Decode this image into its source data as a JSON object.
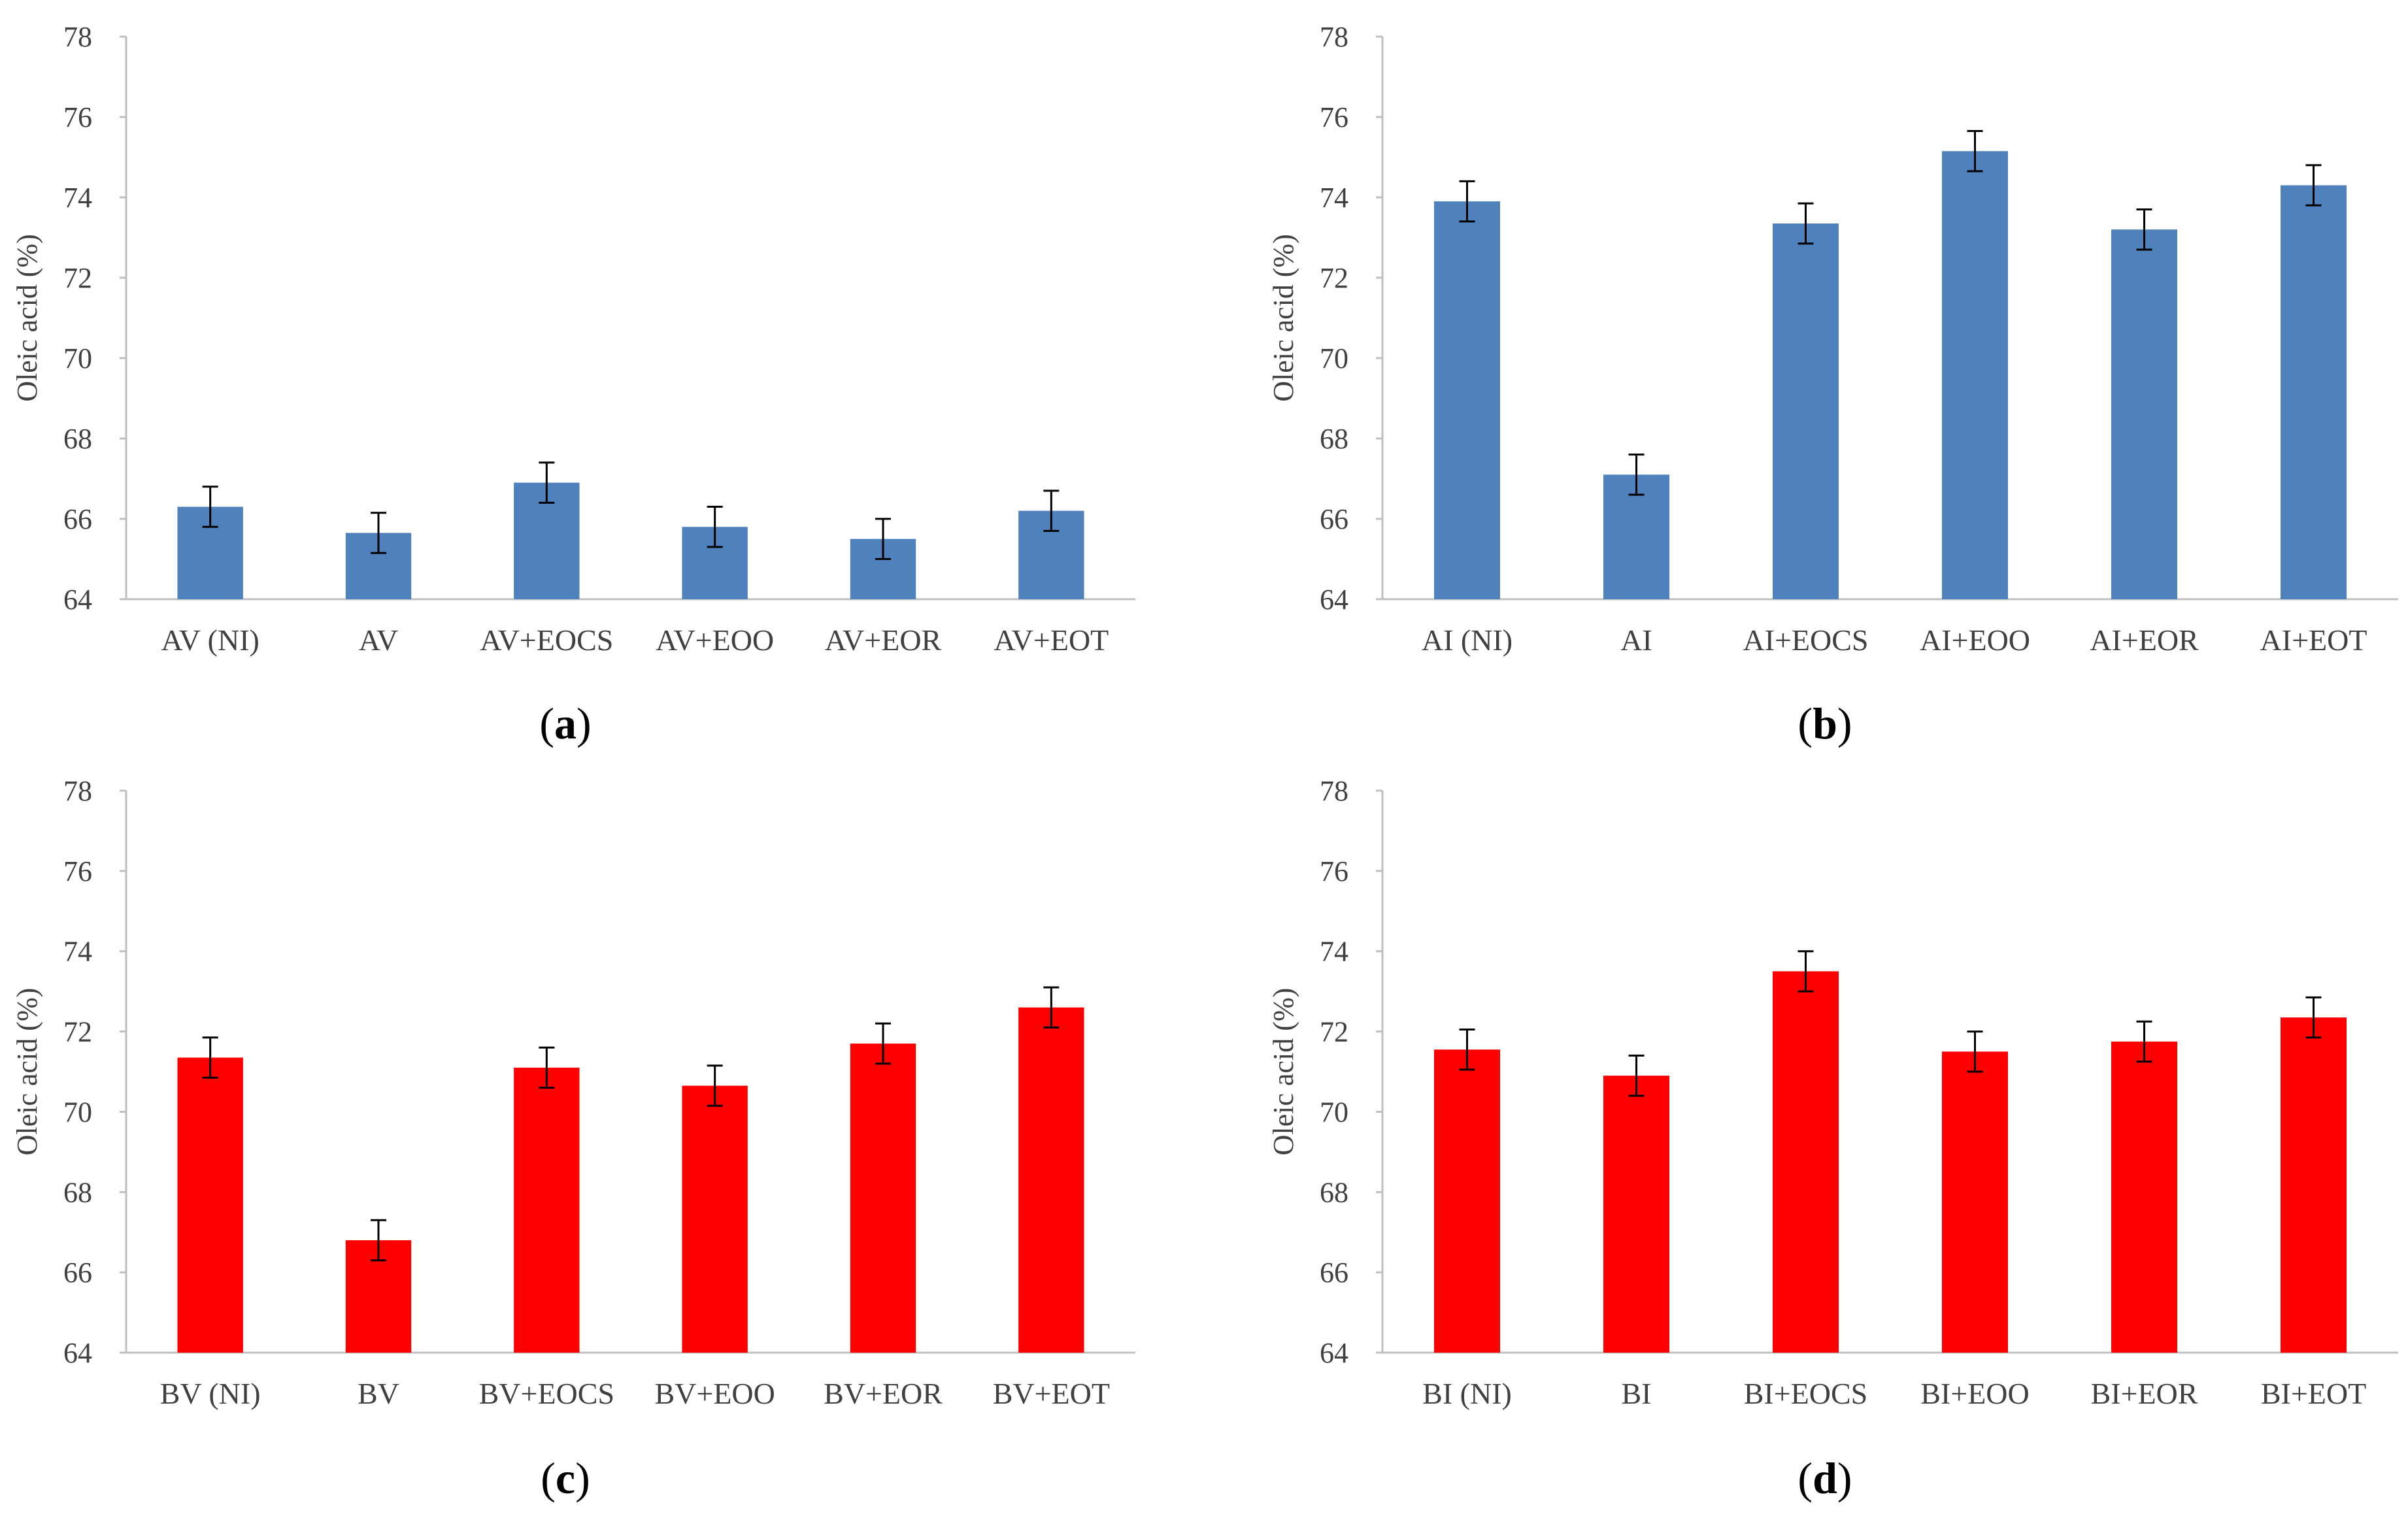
{
  "colors": {
    "blue": "#4f81bd",
    "red": "#ff0000",
    "axis": "#bfbfbf",
    "error": "#000000"
  },
  "chart_data": [
    {
      "type": "bar",
      "caption_letter": "a",
      "color": "#4f81bd",
      "categories": [
        "AV (NI)",
        "AV",
        "AV+EOCS",
        "AV+EOO",
        "AV+EOR",
        "AV+EOT"
      ],
      "values": [
        66.3,
        65.65,
        66.9,
        65.8,
        65.5,
        66.2
      ],
      "errors": [
        0.5,
        0.5,
        0.5,
        0.5,
        0.5,
        0.5
      ],
      "ylabel": "Oleic acid (%)",
      "ylim": [
        64,
        78
      ],
      "yticks": [
        "64",
        "66",
        "68",
        "70",
        "72",
        "74",
        "76",
        "78"
      ],
      "grid": false
    },
    {
      "type": "bar",
      "caption_letter": "b",
      "color": "#4f81bd",
      "categories": [
        "AI (NI)",
        "AI",
        "AI+EOCS",
        "AI+EOO",
        "AI+EOR",
        "AI+EOT"
      ],
      "values": [
        73.9,
        67.1,
        73.35,
        75.15,
        73.2,
        74.3
      ],
      "errors": [
        0.5,
        0.5,
        0.5,
        0.5,
        0.5,
        0.5
      ],
      "ylabel": "Oleic acid (%)",
      "ylim": [
        64,
        78
      ],
      "yticks": [
        "64",
        "66",
        "68",
        "70",
        "72",
        "74",
        "76",
        "78"
      ],
      "grid": false
    },
    {
      "type": "bar",
      "caption_letter": "c",
      "color": "#ff0000",
      "categories": [
        "BV (NI)",
        "BV",
        "BV+EOCS",
        "BV+EOO",
        "BV+EOR",
        "BV+EOT"
      ],
      "values": [
        71.35,
        66.8,
        71.1,
        70.65,
        71.7,
        72.6
      ],
      "errors": [
        0.5,
        0.5,
        0.5,
        0.5,
        0.5,
        0.5
      ],
      "ylabel": "Oleic acid (%)",
      "ylim": [
        64,
        78
      ],
      "yticks": [
        "64",
        "66",
        "68",
        "70",
        "72",
        "74",
        "76",
        "78"
      ],
      "grid": false
    },
    {
      "type": "bar",
      "caption_letter": "d",
      "color": "#ff0000",
      "categories": [
        "BI (NI)",
        "BI",
        "BI+EOCS",
        "BI+EOO",
        "BI+EOR",
        "BI+EOT"
      ],
      "values": [
        71.55,
        70.9,
        73.5,
        71.5,
        71.75,
        72.35
      ],
      "errors": [
        0.5,
        0.5,
        0.5,
        0.5,
        0.5,
        0.5
      ],
      "ylabel": "Oleic acid (%)",
      "ylim": [
        64,
        78
      ],
      "yticks": [
        "64",
        "66",
        "68",
        "70",
        "72",
        "74",
        "76",
        "78"
      ],
      "grid": false
    }
  ]
}
